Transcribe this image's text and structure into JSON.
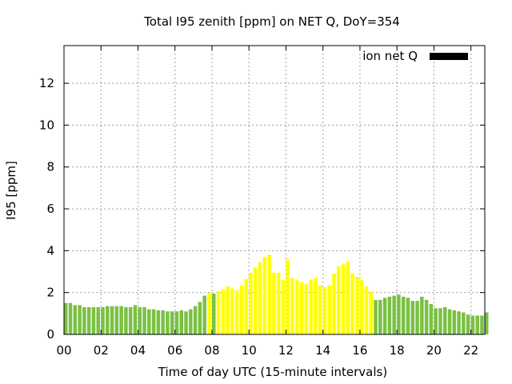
{
  "chart_data": {
    "type": "bar",
    "title": "Total I95 zenith [ppm] on NET Q, DoY=354",
    "xlabel": "Time of day UTC (15-minute intervals)",
    "ylabel": "I95 [ppm]",
    "xlim": [
      0,
      22.75
    ],
    "ylim": [
      0,
      13.8
    ],
    "xticks": [
      "00",
      "02",
      "04",
      "06",
      "08",
      "10",
      "12",
      "14",
      "16",
      "18",
      "20",
      "22"
    ],
    "yticks": [
      "0",
      "2",
      "4",
      "6",
      "8",
      "10",
      "12"
    ],
    "legend": {
      "label": "ion net Q",
      "position": "top-right",
      "color": "#000000"
    },
    "grid": true,
    "colors": {
      "low": "#7ac143",
      "high": "#ffff00"
    },
    "series": [
      {
        "interval_hours": 0.25,
        "values": [
          1.5,
          1.5,
          1.4,
          1.4,
          1.3,
          1.3,
          1.3,
          1.3,
          1.3,
          1.35,
          1.35,
          1.35,
          1.35,
          1.3,
          1.3,
          1.4,
          1.3,
          1.3,
          1.2,
          1.2,
          1.15,
          1.15,
          1.1,
          1.1,
          1.1,
          1.15,
          1.1,
          1.2,
          1.35,
          1.55,
          1.85,
          2.0,
          1.95,
          2.05,
          2.15,
          2.3,
          2.2,
          2.1,
          2.35,
          2.65,
          2.95,
          3.2,
          3.45,
          3.7,
          3.8,
          2.95,
          2.95,
          2.6,
          3.6,
          2.7,
          2.6,
          2.5,
          2.4,
          2.6,
          2.7,
          2.35,
          2.25,
          2.35,
          2.9,
          3.25,
          3.35,
          3.5,
          2.9,
          2.75,
          2.6,
          2.3,
          2.05,
          1.65,
          1.65,
          1.75,
          1.8,
          1.85,
          1.9,
          1.8,
          1.75,
          1.6,
          1.6,
          1.8,
          1.65,
          1.45,
          1.25,
          1.25,
          1.3,
          1.2,
          1.15,
          1.1,
          1.05,
          0.95,
          0.9,
          0.9,
          0.9,
          1.05
        ],
        "category": [
          "low",
          "low",
          "low",
          "low",
          "low",
          "low",
          "low",
          "low",
          "low",
          "low",
          "low",
          "low",
          "low",
          "low",
          "low",
          "low",
          "low",
          "low",
          "low",
          "low",
          "low",
          "low",
          "low",
          "low",
          "low",
          "low",
          "low",
          "low",
          "low",
          "low",
          "low",
          "high",
          "low",
          "high",
          "high",
          "high",
          "high",
          "high",
          "high",
          "high",
          "high",
          "high",
          "high",
          "high",
          "high",
          "high",
          "high",
          "high",
          "high",
          "high",
          "high",
          "high",
          "high",
          "high",
          "high",
          "high",
          "high",
          "high",
          "high",
          "high",
          "high",
          "high",
          "high",
          "high",
          "high",
          "high",
          "high",
          "low",
          "low",
          "low",
          "low",
          "low",
          "low",
          "low",
          "low",
          "low",
          "low",
          "low",
          "low",
          "low",
          "low",
          "low",
          "low",
          "low",
          "low",
          "low",
          "low",
          "low",
          "low",
          "low",
          "low",
          "low"
        ]
      }
    ]
  }
}
